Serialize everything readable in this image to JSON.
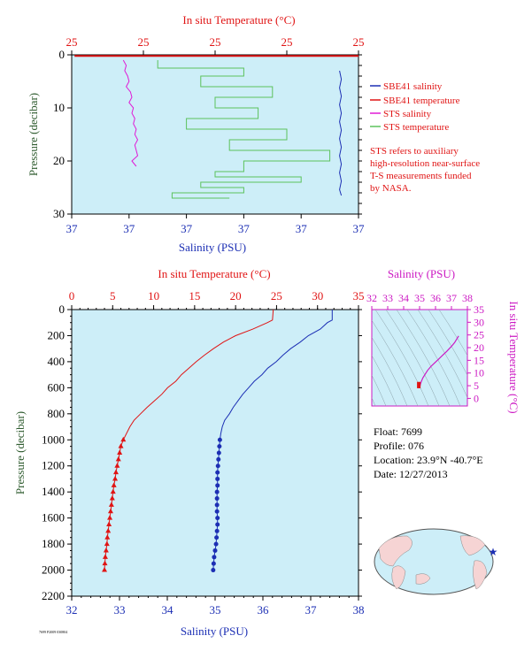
{
  "colors": {
    "panel_bg": "#cdeef8",
    "salinity_blue": "#1c2fb4",
    "temp_red": "#e01414",
    "sts_salinity_magenta": "#e01ad6",
    "sts_temp_green": "#5cc25c",
    "pressure_axis_green": "#2e5b2e",
    "ts_axis_magenta": "#cc19c3"
  },
  "float_info": {
    "float": "Float:  7699",
    "profile": "Profile:  076",
    "location": "Location:  23.9°N  -40.7°E",
    "date": "Date:  12/27/2013"
  },
  "note": {
    "line1": "STS refers to auxiliary",
    "line2": "high-resolution near-surface",
    "line3": "T-S measurements funded",
    "line4": "by NASA."
  },
  "footer_id": "7699 P2009 030804",
  "chart_data": [
    {
      "type": "line",
      "panel": "near-surface profile",
      "title": "In situ Temperature (°C)",
      "top_axis_label": "In situ Temperature (°C)",
      "top_ticks": [
        "25",
        "25",
        "25",
        "25",
        "25"
      ],
      "xlabel": "Salinity (PSU)",
      "x_ticks": [
        "37",
        "37",
        "37",
        "37",
        "37",
        "37"
      ],
      "ylabel": "Pressure (decibar)",
      "y_ticks": [
        "0",
        "10",
        "20",
        "30"
      ],
      "ylim": [
        30,
        0
      ],
      "grid": false,
      "legend_position": "right",
      "legend": [
        "SBE41 salinity",
        "SBE41 temperature",
        "STS salinity",
        "STS temperature"
      ],
      "series": [
        {
          "name": "SBE41 salinity",
          "color": "#1c2fb4",
          "x_frac": [
            0.934,
            0.94,
            0.934,
            0.94,
            0.934,
            0.94,
            0.934,
            0.94,
            0.934,
            0.94,
            0.934,
            0.94,
            0.934,
            0.94,
            0.934,
            0.94
          ],
          "pressure": [
            3,
            4.6,
            6.2,
            7.8,
            9.4,
            11,
            12.6,
            14.2,
            15.8,
            17.4,
            19,
            20.6,
            22.2,
            23.8,
            25.4,
            26.5
          ]
        },
        {
          "name": "SBE41 temperature",
          "color": "#e01414",
          "x_frac": [
            0.01,
            1.0
          ],
          "pressure": [
            0.2,
            0.2
          ]
        },
        {
          "name": "STS salinity",
          "color": "#e01ad6",
          "x_frac": [
            0.18,
            0.19,
            0.185,
            0.195,
            0.2,
            0.19,
            0.205,
            0.21,
            0.2,
            0.215,
            0.21,
            0.22,
            0.215,
            0.225,
            0.22,
            0.23,
            0.22,
            0.225,
            0.23,
            0.21,
            0.225
          ],
          "pressure": [
            1,
            2,
            3,
            4,
            5,
            6,
            7,
            8,
            9,
            10,
            11,
            12,
            13,
            14,
            15,
            16,
            17,
            18,
            19,
            20,
            21
          ]
        },
        {
          "name": "STS temperature",
          "color": "#5cc25c",
          "x_frac": [
            0.3,
            0.6,
            0.45,
            0.7,
            0.5,
            0.65,
            0.4,
            0.75,
            0.55,
            0.9,
            0.6,
            0.5,
            0.8,
            0.45,
            0.6,
            0.35,
            0.55
          ],
          "pressure": [
            1,
            2.5,
            4,
            6,
            8,
            10,
            12,
            14,
            16,
            18,
            20,
            22,
            23,
            24,
            25,
            26,
            27
          ]
        }
      ]
    },
    {
      "type": "line",
      "panel": "full-depth profile",
      "top_axis_label": "In situ Temperature (°C)",
      "top_ticks": [
        "0",
        "5",
        "10",
        "15",
        "20",
        "25",
        "30",
        "35"
      ],
      "xlim_temperature": [
        0,
        35
      ],
      "xlabel": "Salinity (PSU)",
      "x_ticks": [
        "32",
        "33",
        "34",
        "35",
        "36",
        "37",
        "38"
      ],
      "xlim_salinity": [
        32,
        38
      ],
      "ylabel": "Pressure (decibar)",
      "y_ticks": [
        "0",
        "200",
        "400",
        "600",
        "800",
        "1000",
        "1200",
        "1400",
        "1600",
        "1800",
        "2000",
        "2200"
      ],
      "ylim": [
        2200,
        0
      ],
      "grid": false,
      "series": [
        {
          "name": "temperature",
          "color": "#e01414",
          "pressure": [
            0,
            80,
            100,
            150,
            200,
            250,
            300,
            350,
            400,
            450,
            500,
            550,
            600,
            650,
            700,
            750,
            800,
            850,
            900,
            950,
            1000,
            1050,
            1100,
            1150,
            1200,
            1250,
            1300,
            1350,
            1400,
            1450,
            1500,
            1550,
            1600,
            1650,
            1700,
            1750,
            1800,
            1850,
            1900,
            1950,
            2000
          ],
          "temperature": [
            24.6,
            24.5,
            23.9,
            22.1,
            20.0,
            18.5,
            17.3,
            16.2,
            15.2,
            14.3,
            13.4,
            12.7,
            11.7,
            11.0,
            10.1,
            9.2,
            8.4,
            7.6,
            7.1,
            6.7,
            6.3,
            6.0,
            5.85,
            5.7,
            5.55,
            5.4,
            5.3,
            5.15,
            5.05,
            4.95,
            4.85,
            4.75,
            4.65,
            4.55,
            4.45,
            4.35,
            4.3,
            4.2,
            4.1,
            4.05,
            4.0
          ]
        },
        {
          "name": "salinity",
          "color": "#1c2fb4",
          "pressure": [
            0,
            80,
            100,
            150,
            200,
            250,
            300,
            350,
            400,
            450,
            500,
            550,
            600,
            650,
            700,
            750,
            800,
            850,
            900,
            950,
            1000,
            1050,
            1100,
            1150,
            1200,
            1250,
            1300,
            1350,
            1400,
            1450,
            1500,
            1550,
            1600,
            1650,
            1700,
            1750,
            1800,
            1850,
            1900,
            1950,
            2000
          ],
          "salinity": [
            37.45,
            37.45,
            37.35,
            37.2,
            36.95,
            36.78,
            36.58,
            36.42,
            36.28,
            36.1,
            35.98,
            35.82,
            35.7,
            35.58,
            35.48,
            35.38,
            35.3,
            35.2,
            35.15,
            35.12,
            35.1,
            35.09,
            35.08,
            35.07,
            35.06,
            35.05,
            35.05,
            35.05,
            35.04,
            35.04,
            35.04,
            35.04,
            35.05,
            35.05,
            35.04,
            35.03,
            35.02,
            35.0,
            34.98,
            34.97,
            34.96
          ]
        }
      ],
      "markers_from_pressure": 1000
    },
    {
      "type": "line",
      "panel": "T-S diagram",
      "top_axis_label": "Salinity (PSU)",
      "x_ticks": [
        "32",
        "33",
        "34",
        "35",
        "36",
        "37",
        "38"
      ],
      "xlim": [
        32,
        38
      ],
      "ylabel": "In situ Temperature (°C)",
      "y_ticks": [
        "0",
        "5",
        "10",
        "15",
        "20",
        "25",
        "30",
        "35"
      ],
      "ylim": [
        -3,
        35
      ],
      "grid": false,
      "series": [
        {
          "name": "T-S curve",
          "color": "#cc19c3",
          "salinity": [
            35.0,
            35.05,
            35.1,
            35.2,
            35.35,
            35.5,
            35.7,
            35.95,
            36.2,
            36.45,
            36.7,
            37.0,
            37.2,
            37.45
          ],
          "temperature": [
            4.0,
            5.5,
            6.5,
            8.0,
            9.5,
            11.0,
            12.5,
            14.0,
            15.5,
            17.0,
            18.5,
            20.5,
            22.0,
            24.6
          ]
        }
      ]
    }
  ]
}
